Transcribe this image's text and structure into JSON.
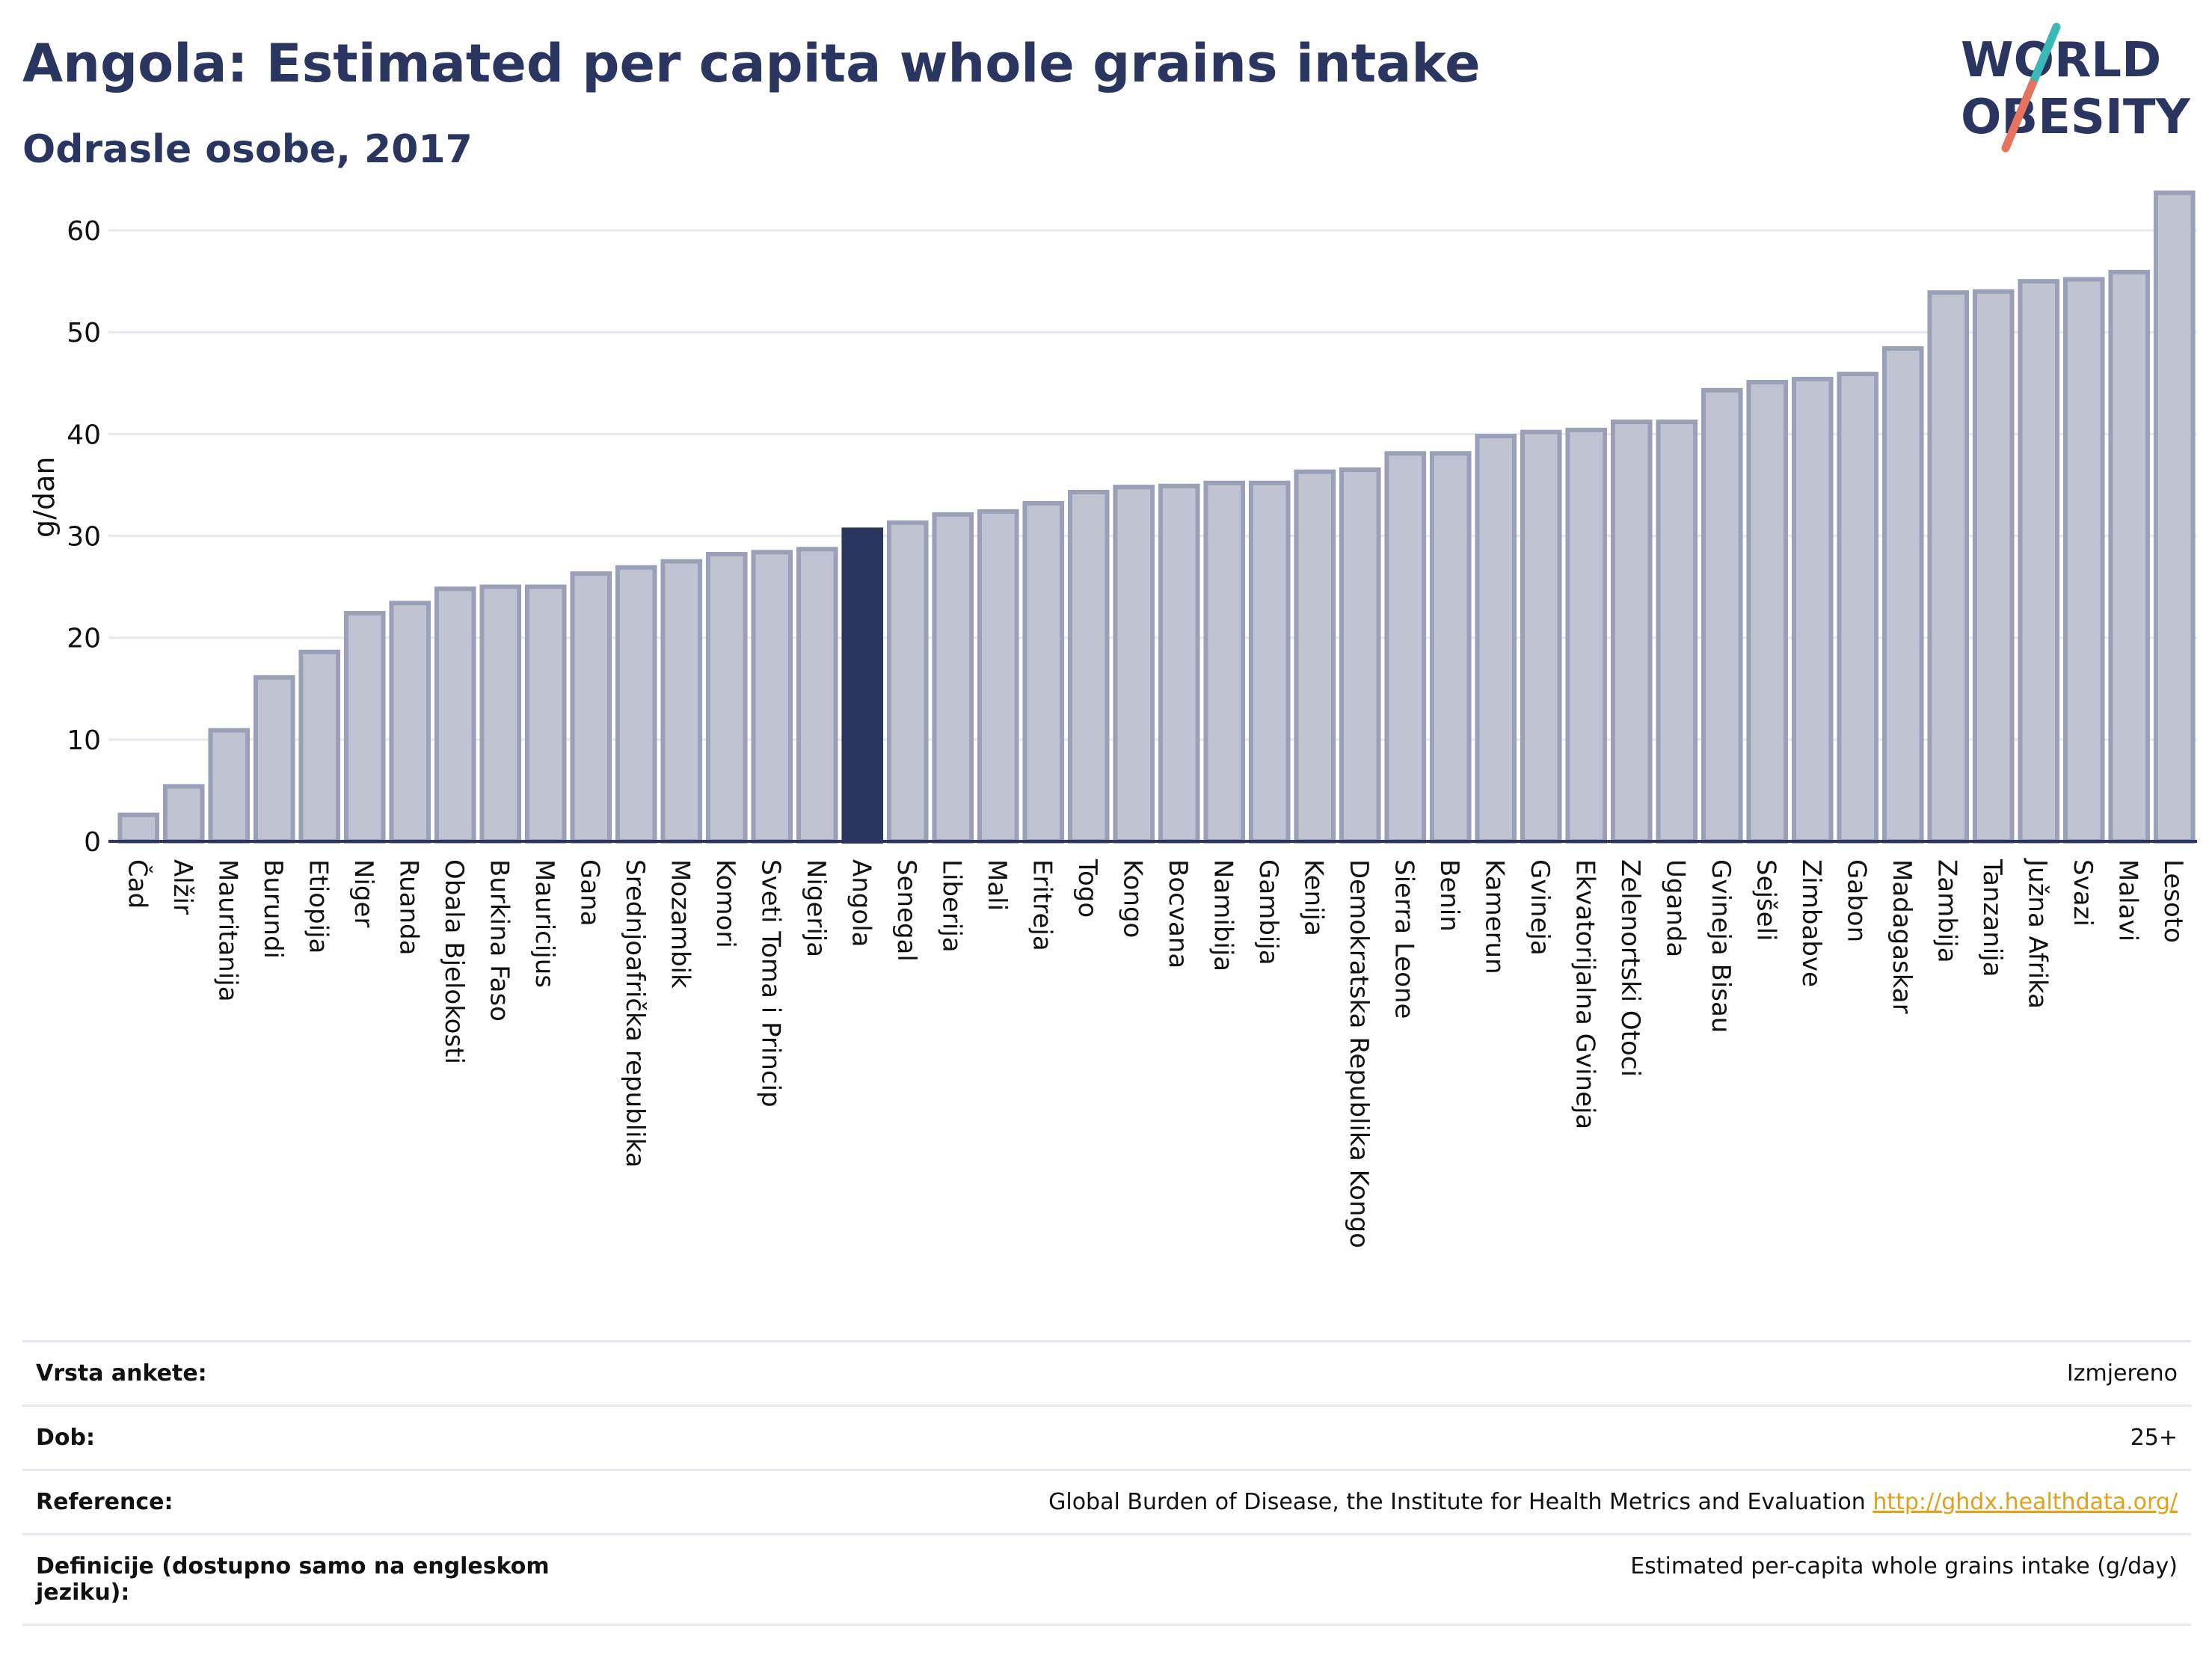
{
  "title": "Angola: Estimated per capita whole grains intake",
  "subtitle": "Odrasle osobe, 2017",
  "logo": {
    "line1": "WORLD",
    "line2": "OBESITY",
    "accent_teal": "#3ab8b6",
    "accent_coral": "#e5735e",
    "text_color": "#2b3660"
  },
  "chart_data": {
    "type": "bar",
    "ylabel": "g/dan",
    "ylim": [
      0,
      65
    ],
    "yticks": [
      0,
      10,
      20,
      30,
      40,
      50,
      60
    ],
    "grid": true,
    "highlight": "Angola",
    "colors": {
      "bar": "#c0c4d2",
      "bar_edge": "#9aa0b8",
      "highlight": "#2b3660",
      "grid": "#e6e9ef",
      "axis": "#2b3660"
    },
    "categories": [
      "Čad",
      "Alžir",
      "Mauritanija",
      "Burundi",
      "Etiopija",
      "Niger",
      "Ruanda",
      "Obala Bjelokosti",
      "Burkina Faso",
      "Mauricijus",
      "Gana",
      "Srednjoafrička republika",
      "Mozambik",
      "Komori",
      "Sveti Toma i Princip",
      "Nigerija",
      "Angola",
      "Senegal",
      "Liberija",
      "Mali",
      "Eritreja",
      "Togo",
      "Kongo",
      "Bocvana",
      "Namibija",
      "Gambija",
      "Kenija",
      "Demokratska Republika Kongo",
      "Sierra Leone",
      "Benin",
      "Kamerun",
      "Gvineja",
      "Ekvatorijalna Gvineja",
      "Zelenortski Otoci",
      "Uganda",
      "Gvineja Bisau",
      "Sejšeli",
      "Zimbabve",
      "Gabon",
      "Madagaskar",
      "Zambija",
      "Tanzanija",
      "Južna Afrika",
      "Svazi",
      "Malavi",
      "Lesoto"
    ],
    "values": [
      2.6,
      5.4,
      10.9,
      16.1,
      18.6,
      22.4,
      23.4,
      24.8,
      25.0,
      25.0,
      26.3,
      26.9,
      27.5,
      28.2,
      28.4,
      28.7,
      30.6,
      31.3,
      32.1,
      32.4,
      33.2,
      34.3,
      34.8,
      34.9,
      35.2,
      35.2,
      36.3,
      36.5,
      38.1,
      38.1,
      39.8,
      40.2,
      40.4,
      41.2,
      41.2,
      44.3,
      45.1,
      45.4,
      45.9,
      48.4,
      53.9,
      54.0,
      55.0,
      55.2,
      55.9,
      63.7
    ]
  },
  "info": {
    "rows": [
      {
        "label": "Vrsta ankete:",
        "value": "Izmjereno"
      },
      {
        "label": "Dob:",
        "value": "25+"
      },
      {
        "label": "Reference:",
        "value": "Global Burden of Disease, the Institute for Health Metrics and Evaluation",
        "link": "http://ghdx.healthdata.org/"
      },
      {
        "label": "Definicije (dostupno samo na engleskom jeziku):",
        "value": "Estimated per-capita whole grains intake (g/day)"
      }
    ]
  }
}
